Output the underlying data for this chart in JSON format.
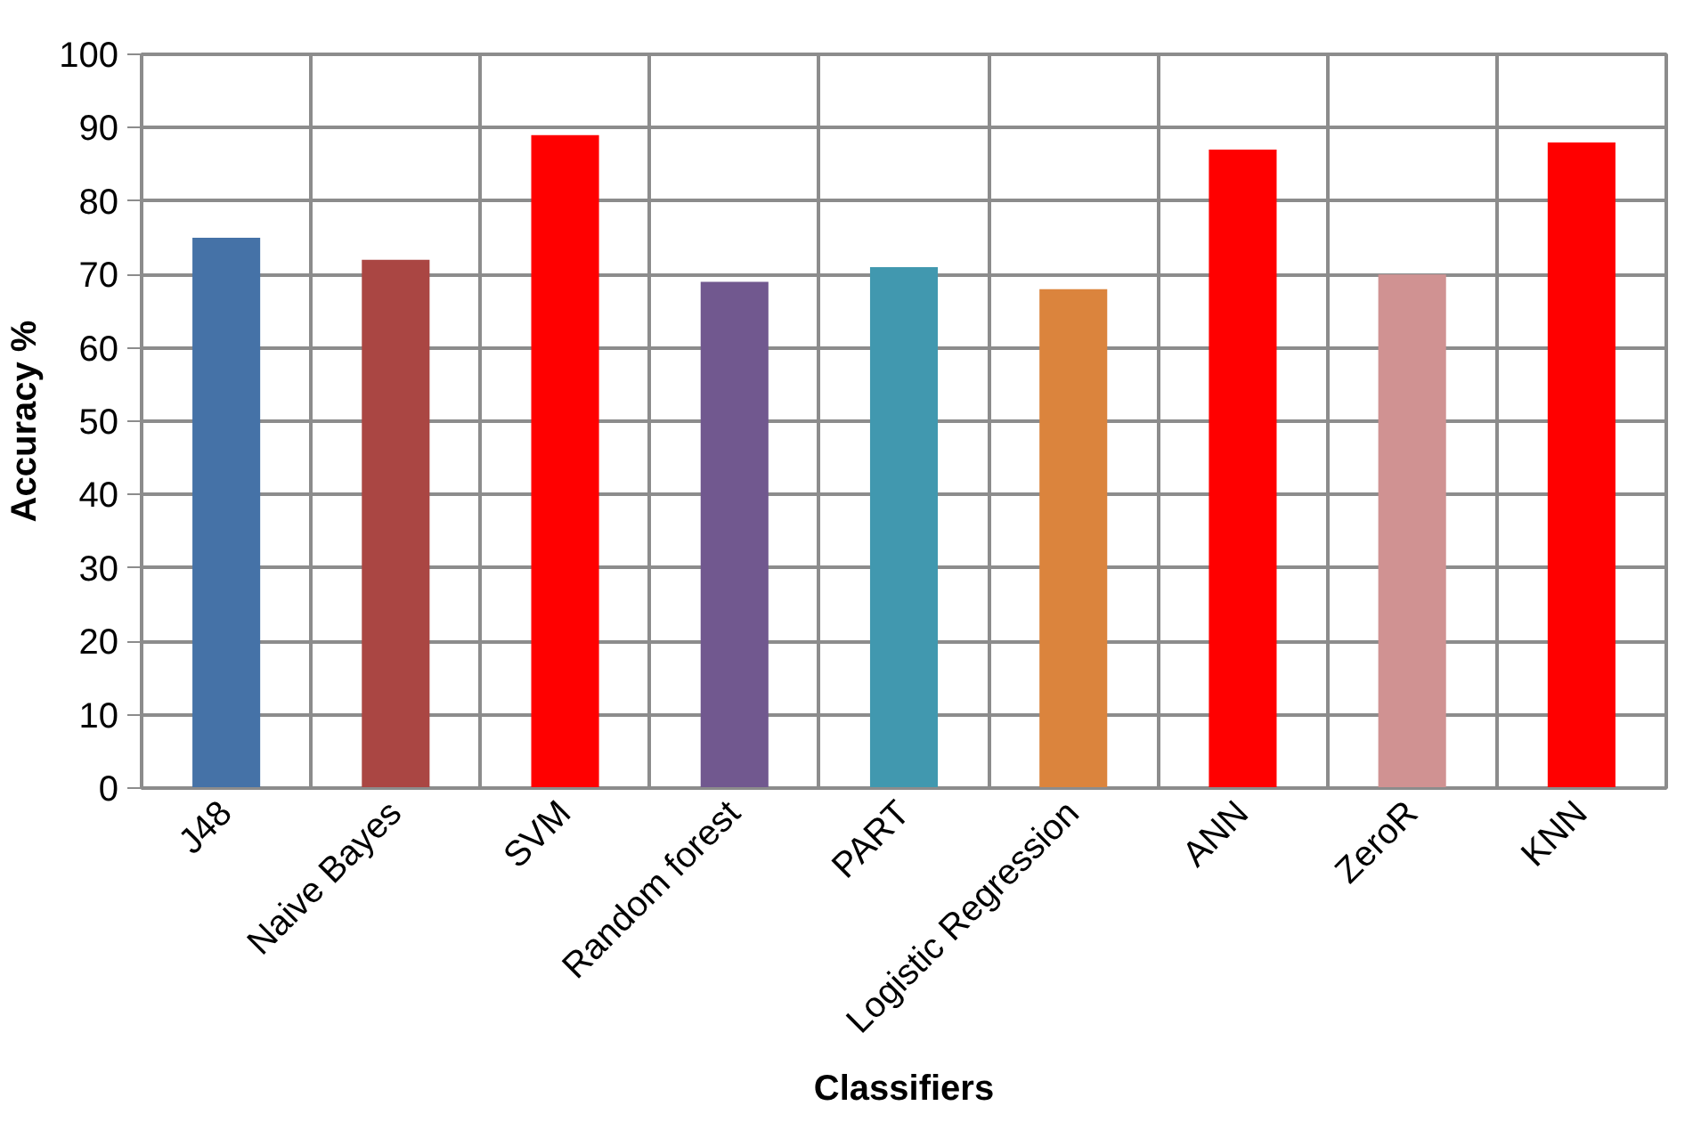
{
  "chart_data": {
    "type": "bar",
    "xlabel": "Classifiers",
    "ylabel": "Accuracy %",
    "categories": [
      "J48",
      "Naive Bayes",
      "SVM",
      "Random forest",
      "PART",
      "Logistic Regression",
      "ANN",
      "ZeroR",
      "KNN"
    ],
    "values": [
      75,
      72,
      89,
      69,
      71,
      68,
      87,
      70,
      88
    ],
    "colors": [
      "#4572a7",
      "#aa4643",
      "#ff0000",
      "#71588f",
      "#4198af",
      "#db843d",
      "#ff0000",
      "#d09292",
      "#ff0000"
    ],
    "ylim": [
      0,
      100
    ],
    "yticks": [
      0,
      10,
      20,
      30,
      40,
      50,
      60,
      70,
      80,
      90,
      100
    ],
    "grid": true
  }
}
